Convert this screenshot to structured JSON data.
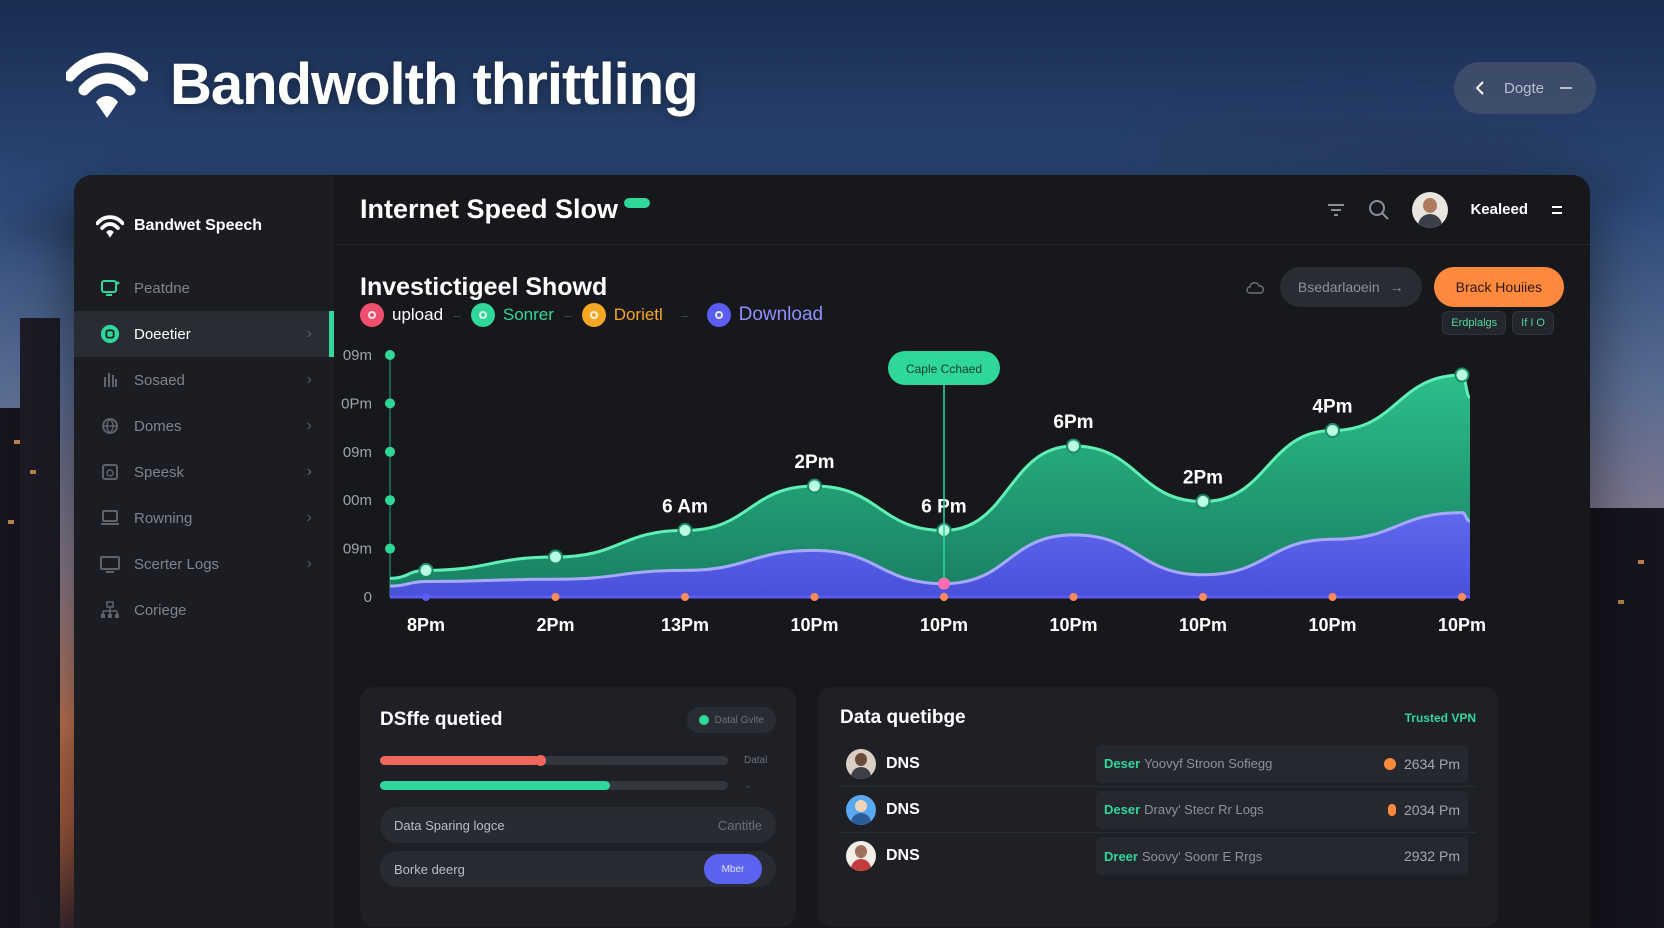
{
  "hero": {
    "title": "Bandwolth thrittling"
  },
  "top_pill": {
    "label": "Dogte"
  },
  "sidebar": {
    "brand": "Bandwet Speech",
    "items": [
      {
        "label": "Peatdne",
        "icon": "monitor-icon"
      },
      {
        "label": "Doeetier",
        "icon": "circle-check-icon",
        "active": true
      },
      {
        "label": "Sosaed",
        "icon": "hand-icon"
      },
      {
        "label": "Domes",
        "icon": "globe-icon"
      },
      {
        "label": "Speesk",
        "icon": "speaker-icon"
      },
      {
        "label": "Rowning",
        "icon": "laptop-icon"
      },
      {
        "label": "Scerter Logs",
        "icon": "screen-icon"
      },
      {
        "label": "Coriege",
        "icon": "network-icon"
      }
    ]
  },
  "header": {
    "title": "Internet Speed Slow",
    "user_name": "Kealeed"
  },
  "sub": {
    "title": "Investictigeel Showd",
    "ghost_button": "Bsedarlaoein",
    "orange_button": "Brack Houiies"
  },
  "legend": [
    {
      "label": "upload",
      "color": "#f0506e"
    },
    {
      "label": "Sonrer",
      "color": "#2fd79a"
    },
    {
      "label": "Dorietl",
      "color": "#f5a623"
    },
    {
      "label": "Download",
      "color": "#5b5cf0"
    }
  ],
  "chart_pills": [
    "Erdplalgs",
    "If I O"
  ],
  "chart_data": {
    "type": "area",
    "y_ticks": [
      "09m",
      "0Pm",
      "09m",
      "00m",
      "09m",
      "0"
    ],
    "x_ticks": [
      "8Pm",
      "2Pm",
      "13Pm",
      "10Pm",
      "10Pm",
      "10Pm",
      "10Pm",
      "10Pm",
      "10Pm"
    ],
    "tooltip": "Caple Cchaed",
    "series": [
      {
        "color": "#2fd79a",
        "values": [
          12,
          18,
          30,
          50,
          30,
          68,
          43,
          75,
          100
        ]
      },
      {
        "color": "#5b5cf0",
        "values": [
          7,
          8,
          12,
          21,
          6,
          28,
          10,
          26,
          38
        ]
      }
    ],
    "point_labels": [
      {
        "index": 2,
        "label": "6 Am"
      },
      {
        "index": 3,
        "label": "2Pm"
      },
      {
        "index": 4,
        "label": "6 Pm"
      },
      {
        "index": 5,
        "label": "6Pm"
      },
      {
        "index": 6,
        "label": "2Pm"
      },
      {
        "index": 7,
        "label": "4Pm"
      }
    ]
  },
  "card_left": {
    "title": "DSffe quetied",
    "status_label": "Datal Gvite",
    "bar1": {
      "value": 0.46,
      "color": "#f0685a",
      "label": "Datal"
    },
    "bar2": {
      "value": 0.66,
      "color": "#2fd79a"
    },
    "row1": {
      "left": "Data Sparing logce",
      "right": "Cantitle"
    },
    "row2": {
      "left": "Borke deerg",
      "button": "Mber"
    }
  },
  "card_right": {
    "title": "Data quetibge",
    "tag": "Trusted VPN",
    "rows": [
      {
        "label": "DNS",
        "tag": "Deser",
        "text": "Yoovyf Stroon Sofiegg",
        "time": "2634 Pm",
        "dot": "#ff8a3d"
      },
      {
        "label": "DNS",
        "tag": "Deser",
        "text": "Dravy' Stecr Rr Logs",
        "time": "2034 Pm",
        "dot": "#ff8a3d"
      },
      {
        "label": "DNS",
        "tag": "Dreer",
        "text": "Soovy' Soonr E Rrgs",
        "time": "2932 Pm",
        "dot": ""
      }
    ]
  }
}
